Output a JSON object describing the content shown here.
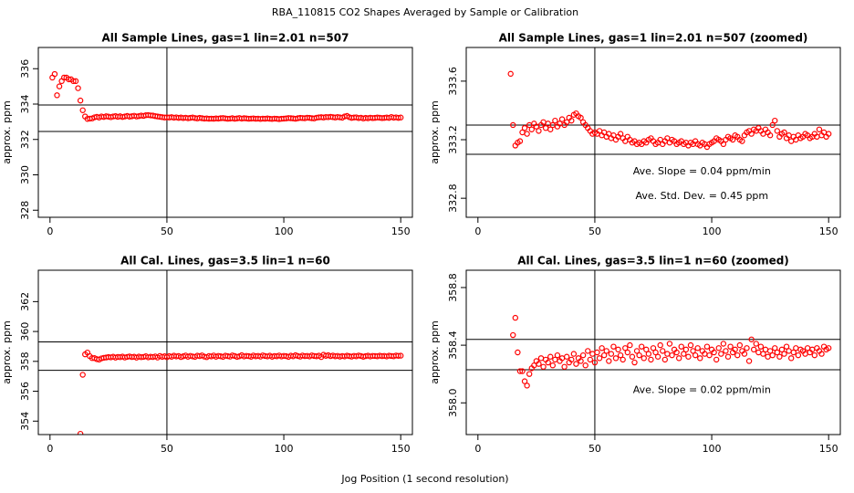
{
  "title": "RBA_110815  CO2 Shapes Averaged by Sample or Calibration",
  "x_label": "Jog Position (1 second resolution)",
  "chart_data": [
    {
      "type": "scatter",
      "title": "All Sample Lines, gas=1 lin=2.01 n=507",
      "y_label": "approx. ppm",
      "color": "#ff0000",
      "xlim": [
        -5,
        155
      ],
      "xticks": [
        0,
        50,
        100,
        150
      ],
      "ylim": [
        327.6,
        337.2
      ],
      "yticks": [
        328,
        330,
        332,
        334,
        336
      ],
      "hlines": [
        333.95,
        332.45
      ],
      "vlines": [
        50
      ],
      "x": [
        1,
        2,
        3,
        4,
        5,
        6,
        7,
        8,
        9,
        10,
        11,
        12,
        13,
        14,
        15,
        16,
        17,
        18,
        19,
        20,
        21,
        22,
        23,
        24,
        25,
        26,
        27,
        28,
        29,
        30,
        31,
        32,
        33,
        34,
        35,
        36,
        37,
        38,
        39,
        40,
        41,
        42,
        43,
        44,
        45,
        46,
        47,
        48,
        49,
        50,
        51,
        52,
        53,
        54,
        55,
        56,
        57,
        58,
        59,
        60,
        61,
        62,
        63,
        64,
        65,
        66,
        67,
        68,
        69,
        70,
        71,
        72,
        73,
        74,
        75,
        76,
        77,
        78,
        79,
        80,
        81,
        82,
        83,
        84,
        85,
        86,
        87,
        88,
        89,
        90,
        91,
        92,
        93,
        94,
        95,
        96,
        97,
        98,
        99,
        100,
        101,
        102,
        103,
        104,
        105,
        106,
        107,
        108,
        109,
        110,
        111,
        112,
        113,
        114,
        115,
        116,
        117,
        118,
        119,
        120,
        121,
        122,
        123,
        124,
        125,
        126,
        127,
        128,
        129,
        130,
        131,
        132,
        133,
        134,
        135,
        136,
        137,
        138,
        139,
        140,
        141,
        142,
        143,
        144,
        145,
        146,
        147,
        148,
        149,
        150
      ],
      "values": [
        335.5,
        335.7,
        334.5,
        335.0,
        335.3,
        335.5,
        335.5,
        335.4,
        335.4,
        335.3,
        335.3,
        334.9,
        334.2,
        333.65,
        333.3,
        333.16,
        333.18,
        333.19,
        333.25,
        333.28,
        333.24,
        333.3,
        333.27,
        333.31,
        333.29,
        333.26,
        333.3,
        333.32,
        333.28,
        333.31,
        333.27,
        333.3,
        333.33,
        333.29,
        333.31,
        333.34,
        333.3,
        333.32,
        333.35,
        333.33,
        333.37,
        333.38,
        333.36,
        333.35,
        333.32,
        333.3,
        333.28,
        333.26,
        333.24,
        333.25,
        333.24,
        333.26,
        333.23,
        333.25,
        333.22,
        333.24,
        333.21,
        333.23,
        333.2,
        333.22,
        333.24,
        333.21,
        333.19,
        333.22,
        333.2,
        333.18,
        333.19,
        333.17,
        333.18,
        333.17,
        333.19,
        333.18,
        333.2,
        333.21,
        333.19,
        333.17,
        333.18,
        333.2,
        333.17,
        333.19,
        333.21,
        333.18,
        333.2,
        333.19,
        333.17,
        333.18,
        333.19,
        333.17,
        333.18,
        333.16,
        333.18,
        333.17,
        333.19,
        333.17,
        333.16,
        333.18,
        333.17,
        333.15,
        333.17,
        333.18,
        333.19,
        333.21,
        333.2,
        333.19,
        333.17,
        333.2,
        333.22,
        333.21,
        333.2,
        333.23,
        333.22,
        333.2,
        333.19,
        333.23,
        333.25,
        333.26,
        333.24,
        333.27,
        333.26,
        333.28,
        333.26,
        333.24,
        333.27,
        333.25,
        333.23,
        333.3,
        333.33,
        333.26,
        333.22,
        333.24,
        333.25,
        333.21,
        333.23,
        333.19,
        333.22,
        333.2,
        333.23,
        333.21,
        333.22,
        333.24,
        333.23,
        333.21,
        333.22,
        333.24,
        333.22,
        333.27,
        333.23,
        333.25,
        333.22,
        333.24
      ]
    },
    {
      "type": "scatter",
      "title": "All Sample Lines, gas=1 lin=2.01 n=507 (zoomed)",
      "y_label": "approx. ppm",
      "color": "#ff0000",
      "xlim": [
        -5,
        155
      ],
      "xticks": [
        0,
        50,
        100,
        150
      ],
      "ylim": [
        332.67,
        333.83
      ],
      "yticks": [
        332.8,
        333.2,
        333.6
      ],
      "hlines": [
        333.3,
        333.1
      ],
      "vlines": [
        50
      ],
      "annotations": [
        "Ave. Slope =  0.04  ppm/min",
        "Ave. Std. Dev. =  0.45  ppm"
      ],
      "x": [
        14,
        15,
        16,
        17,
        18,
        19,
        20,
        21,
        22,
        23,
        24,
        25,
        26,
        27,
        28,
        29,
        30,
        31,
        32,
        33,
        34,
        35,
        36,
        37,
        38,
        39,
        40,
        41,
        42,
        43,
        44,
        45,
        46,
        47,
        48,
        49,
        50,
        51,
        52,
        53,
        54,
        55,
        56,
        57,
        58,
        59,
        60,
        61,
        62,
        63,
        64,
        65,
        66,
        67,
        68,
        69,
        70,
        71,
        72,
        73,
        74,
        75,
        76,
        77,
        78,
        79,
        80,
        81,
        82,
        83,
        84,
        85,
        86,
        87,
        88,
        89,
        90,
        91,
        92,
        93,
        94,
        95,
        96,
        97,
        98,
        99,
        100,
        101,
        102,
        103,
        104,
        105,
        106,
        107,
        108,
        109,
        110,
        111,
        112,
        113,
        114,
        115,
        116,
        117,
        118,
        119,
        120,
        121,
        122,
        123,
        124,
        125,
        126,
        127,
        128,
        129,
        130,
        131,
        132,
        133,
        134,
        135,
        136,
        137,
        138,
        139,
        140,
        141,
        142,
        143,
        144,
        145,
        146,
        147,
        148,
        149,
        150
      ],
      "values": [
        333.65,
        333.3,
        333.16,
        333.18,
        333.19,
        333.25,
        333.28,
        333.24,
        333.3,
        333.27,
        333.31,
        333.29,
        333.26,
        333.3,
        333.32,
        333.28,
        333.31,
        333.27,
        333.3,
        333.33,
        333.29,
        333.31,
        333.34,
        333.3,
        333.32,
        333.35,
        333.33,
        333.37,
        333.38,
        333.36,
        333.35,
        333.32,
        333.3,
        333.28,
        333.26,
        333.24,
        333.25,
        333.24,
        333.26,
        333.23,
        333.25,
        333.22,
        333.24,
        333.21,
        333.23,
        333.2,
        333.22,
        333.24,
        333.21,
        333.19,
        333.22,
        333.2,
        333.18,
        333.19,
        333.17,
        333.18,
        333.17,
        333.19,
        333.18,
        333.2,
        333.21,
        333.19,
        333.17,
        333.18,
        333.2,
        333.17,
        333.19,
        333.21,
        333.18,
        333.2,
        333.19,
        333.17,
        333.18,
        333.19,
        333.17,
        333.18,
        333.16,
        333.18,
        333.17,
        333.19,
        333.17,
        333.16,
        333.18,
        333.17,
        333.15,
        333.17,
        333.18,
        333.19,
        333.21,
        333.2,
        333.19,
        333.17,
        333.2,
        333.22,
        333.21,
        333.2,
        333.23,
        333.22,
        333.2,
        333.19,
        333.23,
        333.25,
        333.26,
        333.24,
        333.27,
        333.26,
        333.28,
        333.26,
        333.24,
        333.27,
        333.25,
        333.23,
        333.3,
        333.33,
        333.26,
        333.22,
        333.24,
        333.25,
        333.21,
        333.23,
        333.19,
        333.22,
        333.2,
        333.23,
        333.21,
        333.22,
        333.24,
        333.23,
        333.21,
        333.22,
        333.24,
        333.22,
        333.27,
        333.23,
        333.25,
        333.22,
        333.24
      ]
    },
    {
      "type": "scatter",
      "title": "All Cal. Lines, gas=3.5 lin=1 n=60",
      "y_label": "approx. ppm",
      "color": "#ff0000",
      "xlim": [
        -5,
        155
      ],
      "xticks": [
        0,
        50,
        100,
        150
      ],
      "ylim": [
        353.1,
        364.1
      ],
      "yticks": [
        354,
        356,
        358,
        360,
        362
      ],
      "hlines": [
        359.3,
        357.4
      ],
      "vlines": [
        50
      ],
      "x": [
        13,
        14,
        15,
        16,
        17,
        18,
        19,
        20,
        21,
        22,
        23,
        24,
        25,
        26,
        27,
        28,
        29,
        30,
        31,
        32,
        33,
        34,
        35,
        36,
        37,
        38,
        39,
        40,
        41,
        42,
        43,
        44,
        45,
        46,
        47,
        48,
        49,
        50,
        51,
        52,
        53,
        54,
        55,
        56,
        57,
        58,
        59,
        60,
        61,
        62,
        63,
        64,
        65,
        66,
        67,
        68,
        69,
        70,
        71,
        72,
        73,
        74,
        75,
        76,
        77,
        78,
        79,
        80,
        81,
        82,
        83,
        84,
        85,
        86,
        87,
        88,
        89,
        90,
        91,
        92,
        93,
        94,
        95,
        96,
        97,
        98,
        99,
        100,
        101,
        102,
        103,
        104,
        105,
        106,
        107,
        108,
        109,
        110,
        111,
        112,
        113,
        114,
        115,
        116,
        117,
        118,
        119,
        120,
        121,
        122,
        123,
        124,
        125,
        126,
        127,
        128,
        129,
        130,
        131,
        132,
        133,
        134,
        135,
        136,
        137,
        138,
        139,
        140,
        141,
        142,
        143,
        144,
        145,
        146,
        147,
        148,
        149,
        150
      ],
      "values": [
        353.15,
        357.1,
        358.47,
        358.59,
        358.35,
        358.22,
        358.22,
        358.15,
        358.12,
        358.2,
        358.24,
        358.26,
        358.29,
        358.27,
        358.31,
        358.25,
        358.3,
        358.28,
        358.32,
        358.26,
        358.3,
        358.33,
        358.29,
        358.31,
        358.25,
        358.32,
        358.28,
        358.3,
        358.34,
        358.27,
        358.31,
        358.29,
        358.33,
        358.26,
        358.36,
        358.3,
        358.34,
        358.28,
        358.35,
        358.31,
        358.38,
        358.33,
        358.36,
        358.29,
        358.34,
        358.39,
        358.31,
        358.37,
        358.33,
        358.3,
        358.38,
        358.35,
        358.4,
        358.32,
        358.28,
        358.36,
        358.33,
        358.39,
        358.31,
        358.37,
        358.34,
        358.3,
        358.38,
        358.35,
        358.32,
        358.4,
        358.36,
        358.3,
        358.34,
        358.41,
        358.33,
        358.37,
        358.35,
        358.31,
        358.39,
        358.34,
        358.37,
        358.32,
        358.4,
        358.36,
        358.33,
        358.38,
        358.31,
        358.36,
        358.34,
        358.39,
        358.33,
        358.37,
        358.35,
        358.3,
        358.38,
        358.34,
        358.41,
        358.36,
        358.32,
        358.39,
        358.35,
        358.37,
        358.33,
        358.4,
        358.36,
        358.34,
        358.38,
        358.29,
        358.44,
        358.37,
        358.41,
        358.35,
        358.39,
        358.34,
        358.37,
        358.32,
        358.36,
        358.33,
        358.38,
        358.35,
        358.32,
        358.37,
        358.34,
        358.39,
        358.36,
        358.31,
        358.35,
        358.38,
        358.33,
        358.37,
        358.36,
        358.34,
        358.38,
        358.35,
        358.37,
        358.33,
        358.38,
        358.36,
        358.34,
        358.39,
        358.37,
        358.38
      ]
    },
    {
      "type": "scatter",
      "title": "All Cal. Lines, gas=3.5 lin=1 n=60 (zoomed)",
      "y_label": "approx. ppm",
      "color": "#ff0000",
      "xlim": [
        -5,
        155
      ],
      "xticks": [
        0,
        50,
        100,
        150
      ],
      "ylim": [
        357.78,
        358.92
      ],
      "yticks": [
        {
          "value": 358,
          "label": "358.0"
        },
        358.4,
        358.8
      ],
      "hlines": [
        358.44,
        358.23
      ],
      "vlines": [
        50
      ],
      "annotations": [
        "Ave. Slope =  0.02  ppm/min"
      ],
      "x": [
        15,
        16,
        17,
        18,
        19,
        20,
        21,
        22,
        23,
        24,
        25,
        26,
        27,
        28,
        29,
        30,
        31,
        32,
        33,
        34,
        35,
        36,
        37,
        38,
        39,
        40,
        41,
        42,
        43,
        44,
        45,
        46,
        47,
        48,
        49,
        50,
        51,
        52,
        53,
        54,
        55,
        56,
        57,
        58,
        59,
        60,
        61,
        62,
        63,
        64,
        65,
        66,
        67,
        68,
        69,
        70,
        71,
        72,
        73,
        74,
        75,
        76,
        77,
        78,
        79,
        80,
        81,
        82,
        83,
        84,
        85,
        86,
        87,
        88,
        89,
        90,
        91,
        92,
        93,
        94,
        95,
        96,
        97,
        98,
        99,
        100,
        101,
        102,
        103,
        104,
        105,
        106,
        107,
        108,
        109,
        110,
        111,
        112,
        113,
        114,
        115,
        116,
        117,
        118,
        119,
        120,
        121,
        122,
        123,
        124,
        125,
        126,
        127,
        128,
        129,
        130,
        131,
        132,
        133,
        134,
        135,
        136,
        137,
        138,
        139,
        140,
        141,
        142,
        143,
        144,
        145,
        146,
        147,
        148,
        149,
        150
      ],
      "values": [
        358.47,
        358.59,
        358.35,
        358.22,
        358.22,
        358.15,
        358.12,
        358.2,
        358.24,
        358.26,
        358.29,
        358.27,
        358.31,
        358.25,
        358.3,
        358.28,
        358.32,
        358.26,
        358.3,
        358.33,
        358.29,
        358.31,
        358.25,
        358.32,
        358.28,
        358.3,
        358.34,
        358.27,
        358.31,
        358.29,
        358.33,
        358.26,
        358.36,
        358.3,
        358.34,
        358.28,
        358.35,
        358.31,
        358.38,
        358.33,
        358.36,
        358.29,
        358.34,
        358.39,
        358.31,
        358.37,
        358.33,
        358.3,
        358.38,
        358.35,
        358.4,
        358.32,
        358.28,
        358.36,
        358.33,
        358.39,
        358.31,
        358.37,
        358.34,
        358.3,
        358.38,
        358.35,
        358.32,
        358.4,
        358.36,
        358.3,
        358.34,
        358.41,
        358.33,
        358.37,
        358.35,
        358.31,
        358.39,
        358.34,
        358.37,
        358.32,
        358.4,
        358.36,
        358.33,
        358.38,
        358.31,
        358.36,
        358.34,
        358.39,
        358.33,
        358.37,
        358.35,
        358.3,
        358.38,
        358.34,
        358.41,
        358.36,
        358.32,
        358.39,
        358.35,
        358.37,
        358.33,
        358.4,
        358.36,
        358.34,
        358.38,
        358.29,
        358.44,
        358.37,
        358.41,
        358.35,
        358.39,
        358.34,
        358.37,
        358.32,
        358.36,
        358.33,
        358.38,
        358.35,
        358.32,
        358.37,
        358.34,
        358.39,
        358.36,
        358.31,
        358.35,
        358.38,
        358.33,
        358.37,
        358.36,
        358.34,
        358.38,
        358.35,
        358.37,
        358.33,
        358.38,
        358.36,
        358.34,
        358.39,
        358.37,
        358.38
      ]
    }
  ]
}
